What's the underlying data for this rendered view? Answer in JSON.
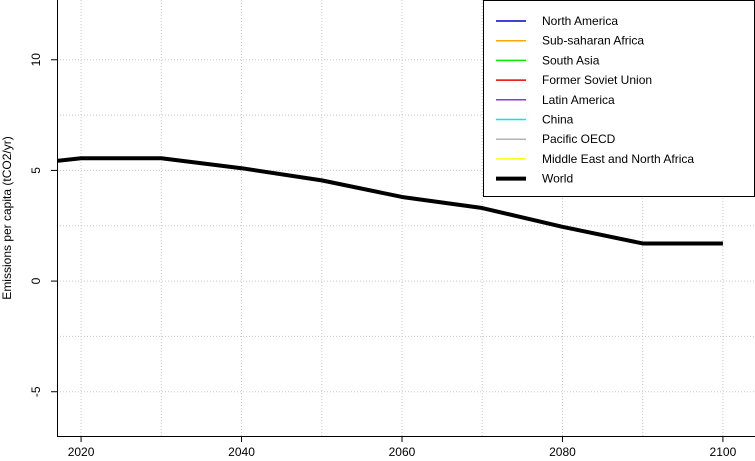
{
  "chart_data": {
    "type": "line",
    "title": "",
    "xlabel": "",
    "ylabel": "Emissions per capita (tCO2/yr)",
    "xlim": [
      2017,
      2104
    ],
    "ylim": [
      -7,
      12.7
    ],
    "x_ticks": [
      2020,
      2040,
      2060,
      2080,
      2100
    ],
    "y_ticks": [
      -5,
      0,
      5,
      10
    ],
    "x_grid": [
      2020,
      2030,
      2040,
      2050,
      2060,
      2070,
      2080,
      2090,
      2100
    ],
    "y_grid": [
      -5,
      -2.5,
      0,
      2.5,
      5,
      7.5,
      10
    ],
    "grid": true,
    "legend_position": "top-right",
    "series": [
      {
        "name": "North America",
        "color": "#0000cd",
        "width": 1.5,
        "x": [],
        "y": []
      },
      {
        "name": "Sub-saharan Africa",
        "color": "#ffa500",
        "width": 1.5,
        "x": [],
        "y": []
      },
      {
        "name": "South Asia",
        "color": "#00ee00",
        "width": 1.5,
        "x": [],
        "y": []
      },
      {
        "name": "Former Soviet Union",
        "color": "#ee0000",
        "width": 1.5,
        "x": [],
        "y": []
      },
      {
        "name": "Latin America",
        "color": "#9932cc",
        "width": 1.5,
        "x": [],
        "y": []
      },
      {
        "name": "China",
        "color": "#00e5ee",
        "width": 1.5,
        "x": [],
        "y": []
      },
      {
        "name": "Pacific OECD",
        "color": "#b4b4b4",
        "width": 1.5,
        "x": [],
        "y": []
      },
      {
        "name": "Middle East and North Africa",
        "color": "#ffff00",
        "width": 1.5,
        "x": [],
        "y": []
      },
      {
        "name": "World",
        "color": "#000000",
        "width": 4,
        "x": [
          2015,
          2020,
          2030,
          2040,
          2050,
          2060,
          2070,
          2080,
          2090,
          2100
        ],
        "y": [
          5.35,
          5.55,
          5.55,
          5.1,
          4.55,
          3.8,
          3.3,
          2.45,
          1.7,
          1.7
        ]
      }
    ]
  }
}
